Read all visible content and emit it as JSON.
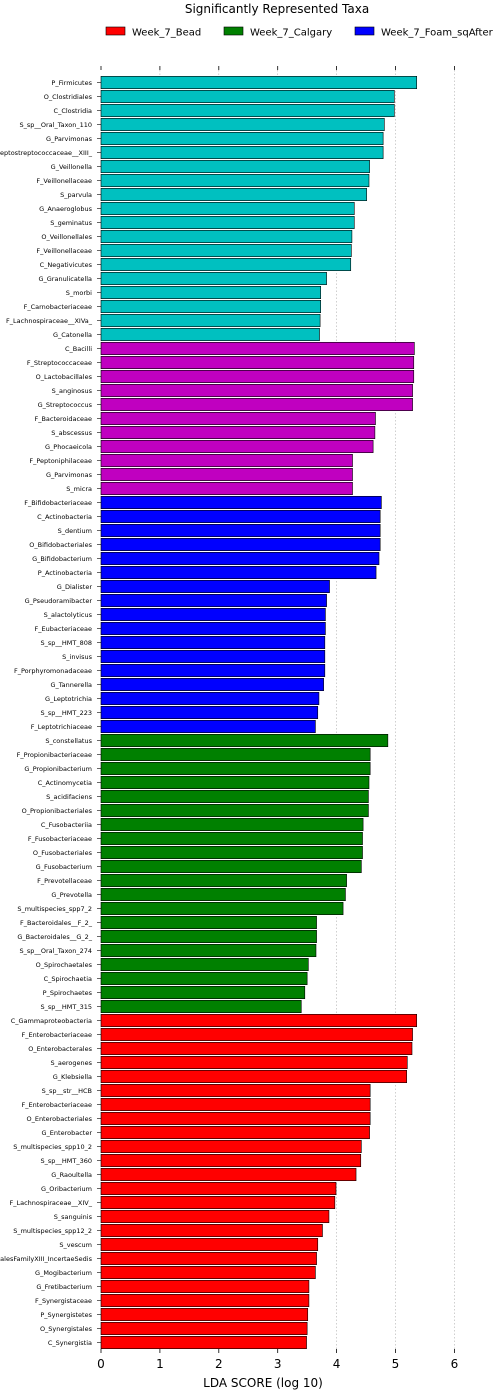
{
  "chart_data": {
    "type": "bar",
    "orientation": "horizontal",
    "title": "Significantly Represented Taxa",
    "xlabel": "LDA SCORE (log 10)",
    "ylabel": "",
    "xlim": [
      0,
      6.35
    ],
    "xticks": [
      "0",
      "1",
      "2",
      "3",
      "4",
      "5",
      "6"
    ],
    "grid": "vertical-dashed",
    "legend_position": "top",
    "legend": [
      {
        "name": "Week_7_Bead",
        "color": "#ff0000"
      },
      {
        "name": "Week_7_Calgary",
        "color": "#008000"
      },
      {
        "name": "Week_7_Foam_sqAfter",
        "color": "#0000ff"
      }
    ],
    "bars": [
      {
        "label": "P_Firmicutes",
        "value": 5.36,
        "color": "#00c0c0"
      },
      {
        "label": "O_Clostridiales",
        "value": 4.98,
        "color": "#00c0c0"
      },
      {
        "label": "C_Clostridia",
        "value": 4.98,
        "color": "#00c0c0"
      },
      {
        "label": "S_sp__Oral_Taxon_110",
        "value": 4.81,
        "color": "#00c0c0"
      },
      {
        "label": "G_Parvimonas",
        "value": 4.79,
        "color": "#00c0c0"
      },
      {
        "label": "F_Peptostreptococcaceae__XIII_",
        "value": 4.79,
        "color": "#00c0c0"
      },
      {
        "label": "G_Veillonella",
        "value": 4.56,
        "color": "#00c0c0"
      },
      {
        "label": "F_Veillonellaceae",
        "value": 4.55,
        "color": "#00c0c0"
      },
      {
        "label": "S_parvula",
        "value": 4.51,
        "color": "#00c0c0"
      },
      {
        "label": "G_Anaeroglobus",
        "value": 4.3,
        "color": "#00c0c0"
      },
      {
        "label": "S_geminatus",
        "value": 4.3,
        "color": "#00c0c0"
      },
      {
        "label": "O_Veillonellales",
        "value": 4.26,
        "color": "#00c0c0"
      },
      {
        "label": "F_Veillonellaceae",
        "value": 4.25,
        "color": "#00c0c0"
      },
      {
        "label": "C_Negativicutes",
        "value": 4.24,
        "color": "#00c0c0"
      },
      {
        "label": "G_Granulicatella",
        "value": 3.83,
        "color": "#00c0c0"
      },
      {
        "label": "S_morbi",
        "value": 3.73,
        "color": "#00c0c0"
      },
      {
        "label": "F_Carnobacteriaceae",
        "value": 3.73,
        "color": "#00c0c0"
      },
      {
        "label": "F_Lachnospiraceae__XIVa_",
        "value": 3.72,
        "color": "#00c0c0"
      },
      {
        "label": "G_Catonella",
        "value": 3.71,
        "color": "#00c0c0"
      },
      {
        "label": "C_Bacilli",
        "value": 5.32,
        "color": "#c000c0"
      },
      {
        "label": "F_Streptococcaceae",
        "value": 5.31,
        "color": "#c000c0"
      },
      {
        "label": "O_Lactobacillales",
        "value": 5.31,
        "color": "#c000c0"
      },
      {
        "label": "S_anginosus",
        "value": 5.29,
        "color": "#c000c0"
      },
      {
        "label": "G_Streptococcus",
        "value": 5.29,
        "color": "#c000c0"
      },
      {
        "label": "F_Bacteroidaceae",
        "value": 4.66,
        "color": "#c000c0"
      },
      {
        "label": "S_abscessus",
        "value": 4.65,
        "color": "#c000c0"
      },
      {
        "label": "G_Phocaeicola",
        "value": 4.62,
        "color": "#c000c0"
      },
      {
        "label": "F_Peptoniphilaceae",
        "value": 4.27,
        "color": "#c000c0"
      },
      {
        "label": "G_Parvimonas",
        "value": 4.27,
        "color": "#c000c0"
      },
      {
        "label": "S_micra",
        "value": 4.27,
        "color": "#c000c0"
      },
      {
        "label": "F_Bifidobacteriaceae",
        "value": 4.76,
        "color": "#0000ff"
      },
      {
        "label": "C_Actinobacteria",
        "value": 4.74,
        "color": "#0000ff"
      },
      {
        "label": "S_dentium",
        "value": 4.74,
        "color": "#0000ff"
      },
      {
        "label": "O_Bifidobacteriales",
        "value": 4.74,
        "color": "#0000ff"
      },
      {
        "label": "G_Bifidobacterium",
        "value": 4.72,
        "color": "#0000ff"
      },
      {
        "label": "P_Actinobacteria",
        "value": 4.67,
        "color": "#0000ff"
      },
      {
        "label": "G_Dialister",
        "value": 3.88,
        "color": "#0000ff"
      },
      {
        "label": "G_Pseudoramibacter",
        "value": 3.83,
        "color": "#0000ff"
      },
      {
        "label": "S_alactolyticus",
        "value": 3.81,
        "color": "#0000ff"
      },
      {
        "label": "F_Eubacteriaceae",
        "value": 3.81,
        "color": "#0000ff"
      },
      {
        "label": "S_sp__HMT_808",
        "value": 3.8,
        "color": "#0000ff"
      },
      {
        "label": "S_invisus",
        "value": 3.8,
        "color": "#0000ff"
      },
      {
        "label": "F_Porphyromonadaceae",
        "value": 3.8,
        "color": "#0000ff"
      },
      {
        "label": "G_Tannerella",
        "value": 3.78,
        "color": "#0000ff"
      },
      {
        "label": "G_Leptotrichia",
        "value": 3.7,
        "color": "#0000ff"
      },
      {
        "label": "S_sp__HMT_223",
        "value": 3.68,
        "color": "#0000ff"
      },
      {
        "label": "F_Leptotrichiaceae",
        "value": 3.64,
        "color": "#0000ff"
      },
      {
        "label": "S_constellatus",
        "value": 4.87,
        "color": "#008000"
      },
      {
        "label": "F_Propionibacteriaceae",
        "value": 4.57,
        "color": "#008000"
      },
      {
        "label": "G_Propionibacterium",
        "value": 4.57,
        "color": "#008000"
      },
      {
        "label": "C_Actinomycetia",
        "value": 4.55,
        "color": "#008000"
      },
      {
        "label": "S_acidifaciens",
        "value": 4.54,
        "color": "#008000"
      },
      {
        "label": "O_Propionibacteriales",
        "value": 4.54,
        "color": "#008000"
      },
      {
        "label": "C_Fusobacteriia",
        "value": 4.45,
        "color": "#008000"
      },
      {
        "label": "F_Fusobacteriaceae",
        "value": 4.44,
        "color": "#008000"
      },
      {
        "label": "O_Fusobacteriales",
        "value": 4.44,
        "color": "#008000"
      },
      {
        "label": "G_Fusobacterium",
        "value": 4.42,
        "color": "#008000"
      },
      {
        "label": "F_Prevotellaceae",
        "value": 4.17,
        "color": "#008000"
      },
      {
        "label": "G_Prevotella",
        "value": 4.15,
        "color": "#008000"
      },
      {
        "label": "S_multispecies_spp7_2",
        "value": 4.11,
        "color": "#008000"
      },
      {
        "label": "F_Bacteroidales__F_2_",
        "value": 3.66,
        "color": "#008000"
      },
      {
        "label": "G_Bacteroidales__G_2_",
        "value": 3.66,
        "color": "#008000"
      },
      {
        "label": "S_sp__Oral_Taxon_274",
        "value": 3.65,
        "color": "#008000"
      },
      {
        "label": "O_Spirochaetales",
        "value": 3.52,
        "color": "#008000"
      },
      {
        "label": "C_Spirochaetia",
        "value": 3.5,
        "color": "#008000"
      },
      {
        "label": "P_Spirochaetes",
        "value": 3.46,
        "color": "#008000"
      },
      {
        "label": "S_sp__HMT_315",
        "value": 3.4,
        "color": "#008000"
      },
      {
        "label": "C_Gammaproteobacteria",
        "value": 5.36,
        "color": "#ff0000"
      },
      {
        "label": "F_Enterobacteriaceae",
        "value": 5.29,
        "color": "#ff0000"
      },
      {
        "label": "O_Enterobacterales",
        "value": 5.28,
        "color": "#ff0000"
      },
      {
        "label": "S_aerogenes",
        "value": 5.2,
        "color": "#ff0000"
      },
      {
        "label": "G_Klebsiella",
        "value": 5.19,
        "color": "#ff0000"
      },
      {
        "label": "S_sp__str__HCB",
        "value": 4.57,
        "color": "#ff0000"
      },
      {
        "label": "F_Enterobacteriaceae",
        "value": 4.57,
        "color": "#ff0000"
      },
      {
        "label": "O_Enterobacteriales",
        "value": 4.57,
        "color": "#ff0000"
      },
      {
        "label": "G_Enterobacter",
        "value": 4.56,
        "color": "#ff0000"
      },
      {
        "label": "S_multispecies_spp10_2",
        "value": 4.42,
        "color": "#ff0000"
      },
      {
        "label": "S_sp__HMT_360",
        "value": 4.41,
        "color": "#ff0000"
      },
      {
        "label": "G_Raoultella",
        "value": 4.33,
        "color": "#ff0000"
      },
      {
        "label": "G_Oribacterium",
        "value": 3.99,
        "color": "#ff0000"
      },
      {
        "label": "F_Lachnospiraceae__XIV_",
        "value": 3.97,
        "color": "#ff0000"
      },
      {
        "label": "S_sanguinis",
        "value": 3.87,
        "color": "#ff0000"
      },
      {
        "label": "S_multispecies_spp12_2",
        "value": 3.76,
        "color": "#ff0000"
      },
      {
        "label": "S_vescum",
        "value": 3.68,
        "color": "#ff0000"
      },
      {
        "label": "F_PeptostreptococcalesFamilyXIII_IncertaeSedis",
        "value": 3.66,
        "color": "#ff0000"
      },
      {
        "label": "G_Mogibacterium",
        "value": 3.64,
        "color": "#ff0000"
      },
      {
        "label": "G_Fretibacterium",
        "value": 3.53,
        "color": "#ff0000"
      },
      {
        "label": "F_Synergistaceae",
        "value": 3.53,
        "color": "#ff0000"
      },
      {
        "label": "P_Synergistetes",
        "value": 3.51,
        "color": "#ff0000"
      },
      {
        "label": "O_Synergistales",
        "value": 3.5,
        "color": "#ff0000"
      },
      {
        "label": "C_Synergistia",
        "value": 3.49,
        "color": "#ff0000"
      }
    ]
  }
}
